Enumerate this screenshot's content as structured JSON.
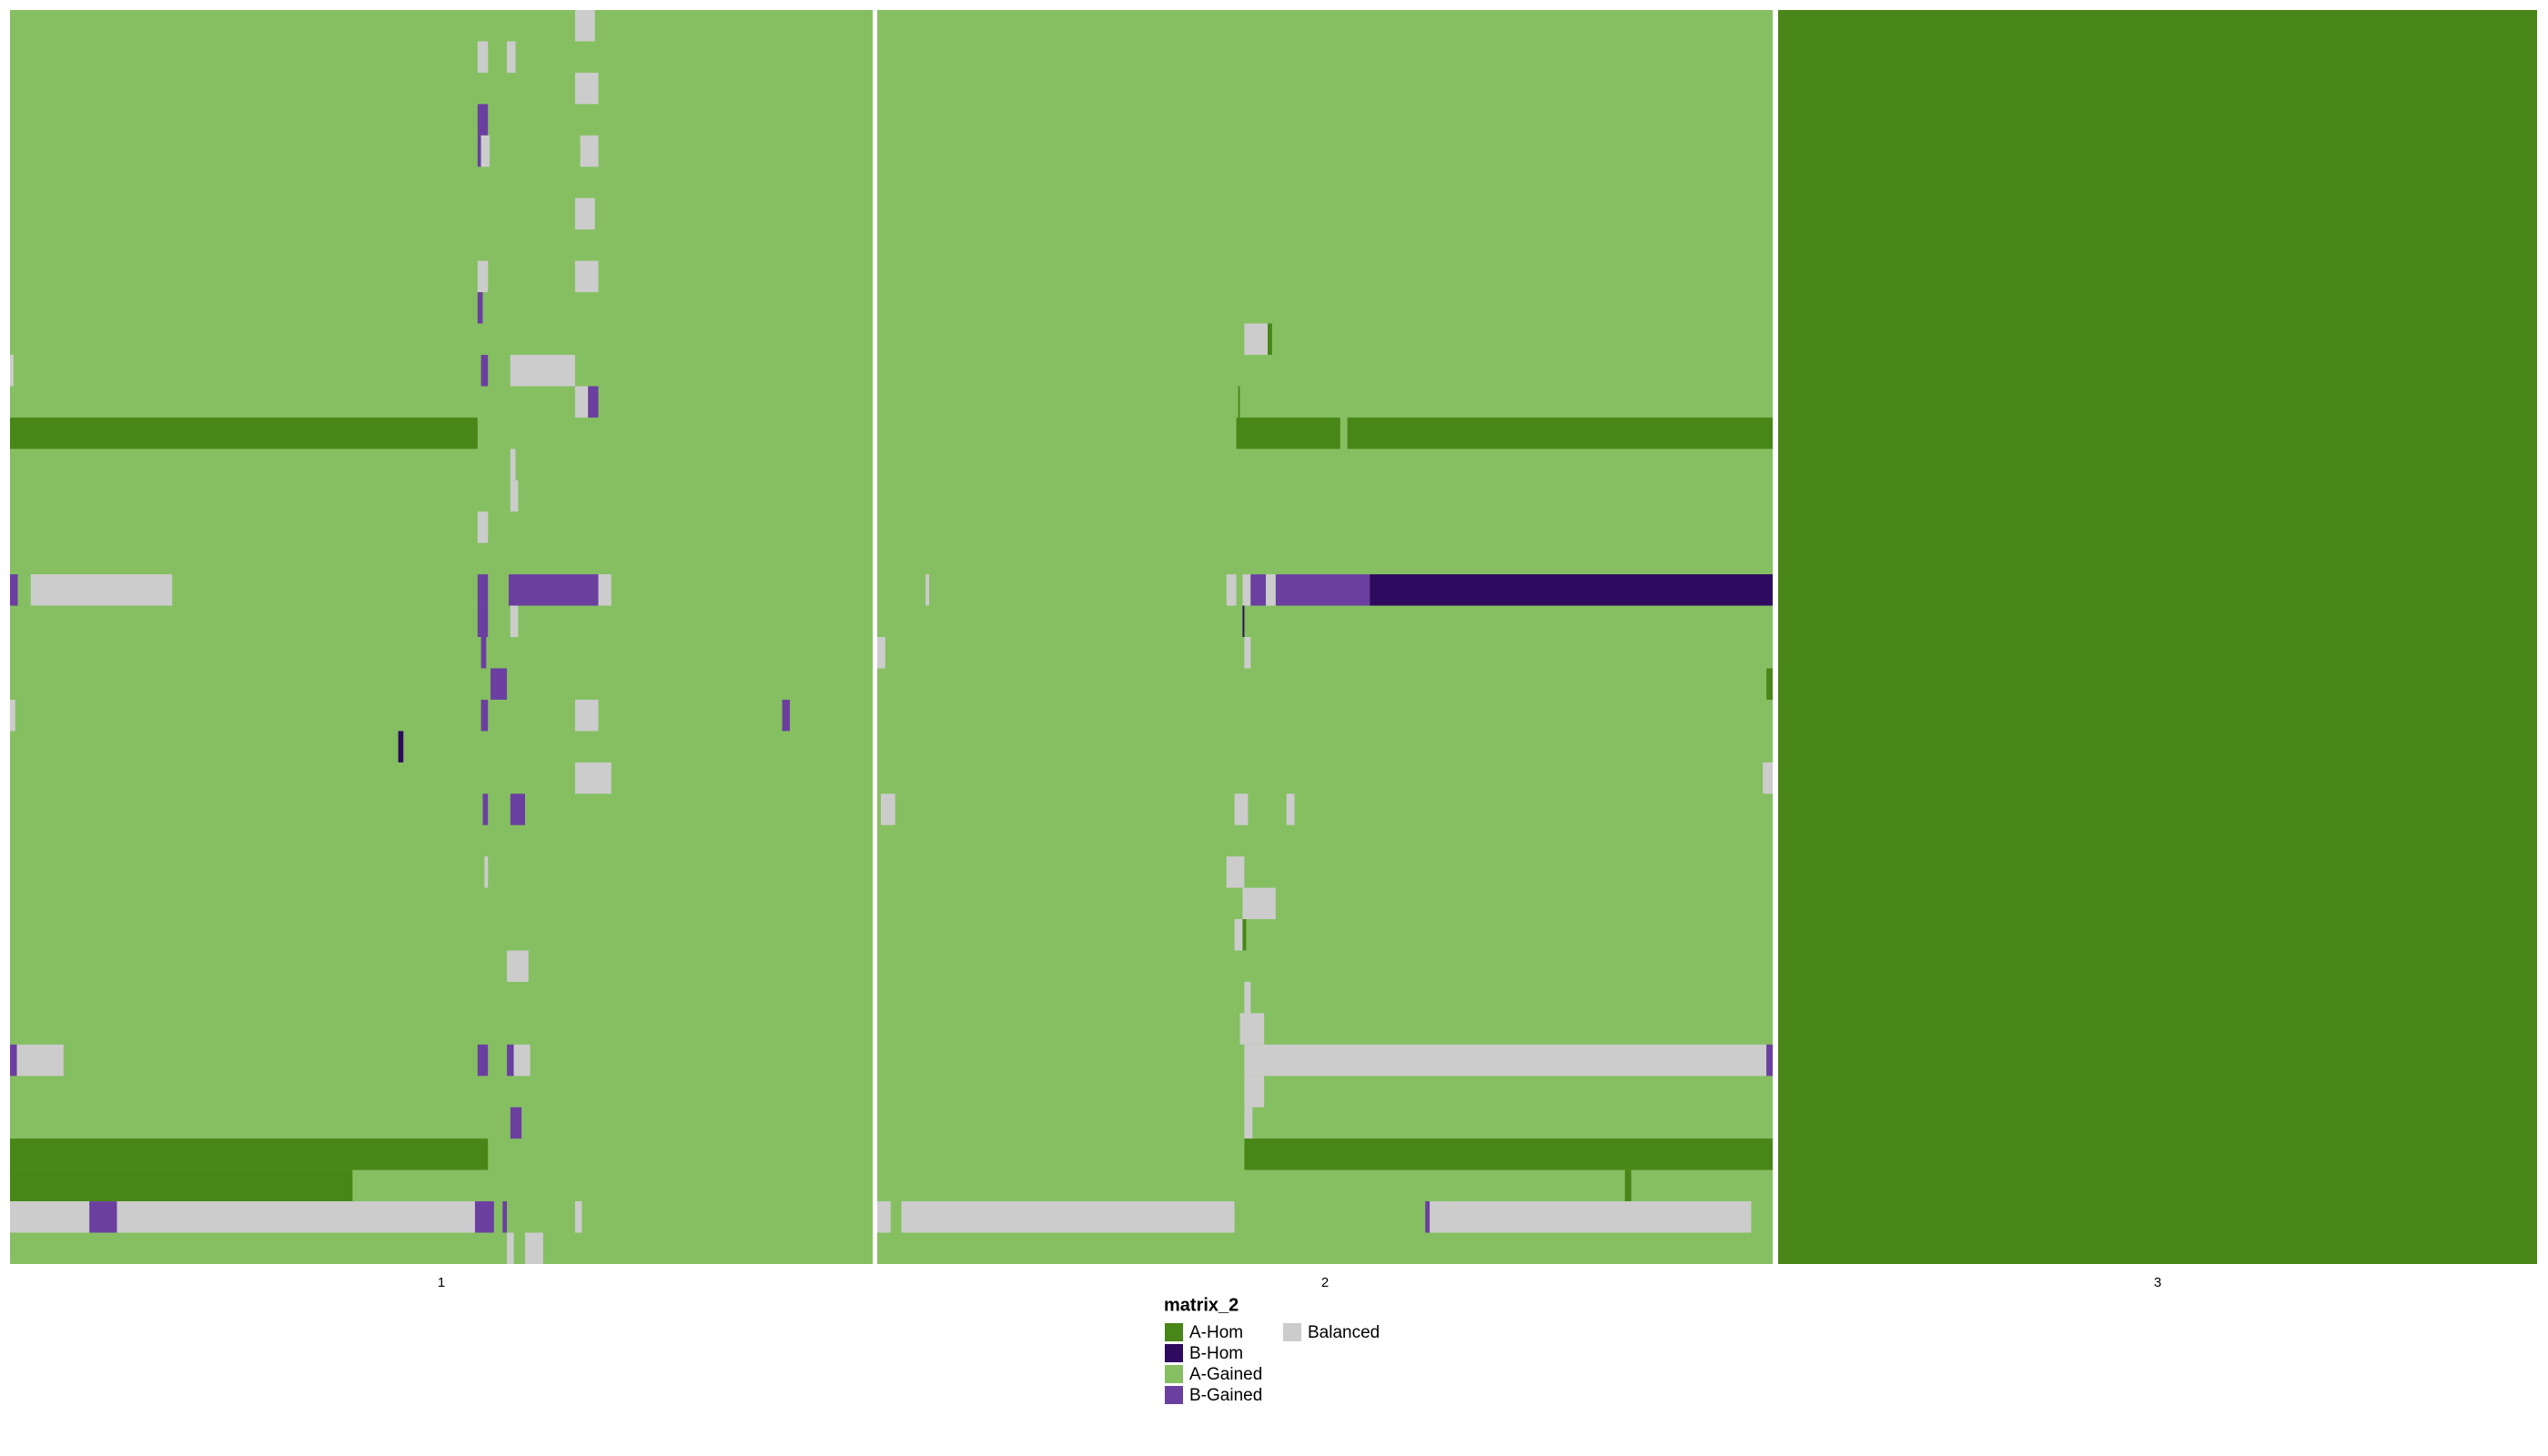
{
  "chart_data": {
    "type": "heatmap",
    "legend": {
      "title": "matrix_2",
      "items": [
        {
          "name": "A-Hom",
          "color": "#488617"
        },
        {
          "name": "B-Hom",
          "color": "#2e0b5e"
        },
        {
          "name": "A-Gained",
          "color": "#86bf62"
        },
        {
          "name": "B-Gained",
          "color": "#6b3fa0"
        },
        {
          "name": "Balanced",
          "color": "#cccccc"
        }
      ]
    },
    "panels": [
      {
        "label": "1",
        "fill": 2,
        "blocks": [
          [
            0,
            65.5,
            67.8,
            4
          ],
          [
            1,
            54.2,
            55.4,
            4
          ],
          [
            1,
            57.6,
            58.6,
            4
          ],
          [
            2,
            65.5,
            68.2,
            4
          ],
          [
            3,
            54.2,
            55.4,
            3
          ],
          [
            4,
            54.2,
            54.6,
            3
          ],
          [
            4,
            54.6,
            55.6,
            4
          ],
          [
            4,
            66.1,
            68.2,
            4
          ],
          [
            6,
            65.5,
            67.8,
            4
          ],
          [
            8,
            54.2,
            55.4,
            4
          ],
          [
            8,
            65.5,
            68.2,
            4
          ],
          [
            9,
            54.2,
            54.8,
            3
          ],
          [
            11,
            0,
            0.4,
            4
          ],
          [
            11,
            54.6,
            55.4,
            3
          ],
          [
            11,
            58.0,
            65.5,
            4
          ],
          [
            12,
            65.5,
            67.0,
            4
          ],
          [
            12,
            67.0,
            68.2,
            3
          ],
          [
            13,
            0,
            54.2,
            0
          ],
          [
            14,
            58.0,
            58.6,
            4
          ],
          [
            15,
            58.0,
            58.9,
            4
          ],
          [
            16,
            54.2,
            55.4,
            4
          ],
          [
            18,
            0,
            0.9,
            3
          ],
          [
            18,
            2.4,
            18.8,
            4
          ],
          [
            18,
            54.2,
            55.4,
            3
          ],
          [
            18,
            57.8,
            68.2,
            3
          ],
          [
            18,
            68.2,
            69.7,
            4
          ],
          [
            19,
            54.2,
            55.4,
            3
          ],
          [
            19,
            58.0,
            58.9,
            4
          ],
          [
            20,
            54.6,
            55.2,
            3
          ],
          [
            21,
            55.7,
            57.6,
            3
          ],
          [
            22,
            0,
            0.6,
            4
          ],
          [
            22,
            54.6,
            55.4,
            3
          ],
          [
            22,
            65.5,
            68.2,
            4
          ],
          [
            22,
            89.5,
            90.4,
            3
          ],
          [
            23,
            45.0,
            45.6,
            1
          ],
          [
            24,
            65.5,
            69.7,
            4
          ],
          [
            25,
            54.8,
            55.4,
            3
          ],
          [
            25,
            58.0,
            59.7,
            3
          ],
          [
            27,
            55.0,
            55.4,
            4
          ],
          [
            30,
            57.6,
            60.1,
            4
          ],
          [
            33,
            0,
            0.8,
            3
          ],
          [
            33,
            0.8,
            6.2,
            4
          ],
          [
            33,
            54.2,
            55.4,
            3
          ],
          [
            33,
            57.6,
            58.4,
            3
          ],
          [
            33,
            58.4,
            60.3,
            4
          ],
          [
            35,
            58.0,
            59.3,
            3
          ],
          [
            36,
            0,
            55.4,
            0
          ],
          [
            37,
            0,
            39.7,
            0
          ],
          [
            38,
            0,
            9.2,
            4
          ],
          [
            38,
            9.2,
            12.4,
            3
          ],
          [
            38,
            12.4,
            53.9,
            4
          ],
          [
            38,
            53.9,
            56.1,
            3
          ],
          [
            38,
            57.1,
            57.6,
            3
          ],
          [
            38,
            65.5,
            66.3,
            4
          ],
          [
            39,
            57.6,
            58.4,
            4
          ],
          [
            39,
            59.7,
            61.8,
            4
          ]
        ]
      },
      {
        "label": "2",
        "fill": 2,
        "blocks": [
          [
            10,
            41.0,
            43.6,
            4
          ],
          [
            10,
            43.6,
            44.1,
            0
          ],
          [
            12,
            40.3,
            40.5,
            0
          ],
          [
            13,
            40.1,
            51.7,
            0
          ],
          [
            13,
            52.5,
            100,
            0
          ],
          [
            18,
            5.4,
            5.8,
            4
          ],
          [
            18,
            39.0,
            40.1,
            4
          ],
          [
            18,
            40.8,
            41.7,
            4
          ],
          [
            18,
            41.7,
            43.4,
            3
          ],
          [
            18,
            43.4,
            44.5,
            4
          ],
          [
            18,
            44.5,
            55.0,
            3
          ],
          [
            18,
            55.0,
            100,
            1
          ],
          [
            19,
            40.8,
            41.0,
            1
          ],
          [
            20,
            0,
            0.9,
            4
          ],
          [
            20,
            41.0,
            41.7,
            4
          ],
          [
            21,
            99.3,
            100,
            0
          ],
          [
            24,
            98.9,
            100,
            4
          ],
          [
            25,
            0.4,
            2.0,
            4
          ],
          [
            25,
            39.9,
            41.4,
            4
          ],
          [
            25,
            45.7,
            46.6,
            4
          ],
          [
            27,
            39.0,
            41.0,
            4
          ],
          [
            28,
            40.8,
            44.5,
            4
          ],
          [
            29,
            39.9,
            40.8,
            4
          ],
          [
            29,
            40.8,
            41.2,
            0
          ],
          [
            31,
            41.0,
            41.7,
            4
          ],
          [
            32,
            40.5,
            43.2,
            4
          ],
          [
            33,
            41.0,
            99.3,
            4
          ],
          [
            33,
            99.3,
            100,
            3
          ],
          [
            34,
            41.0,
            43.2,
            4
          ],
          [
            35,
            41.0,
            41.9,
            4
          ],
          [
            36,
            41.0,
            100,
            0
          ],
          [
            37,
            83.5,
            84.2,
            0
          ],
          [
            38,
            0,
            1.5,
            4
          ],
          [
            38,
            2.7,
            39.9,
            4
          ],
          [
            38,
            61.2,
            61.7,
            3
          ],
          [
            38,
            61.7,
            97.6,
            4
          ]
        ]
      },
      {
        "label": "3",
        "fill": 0,
        "blocks": []
      }
    ]
  }
}
